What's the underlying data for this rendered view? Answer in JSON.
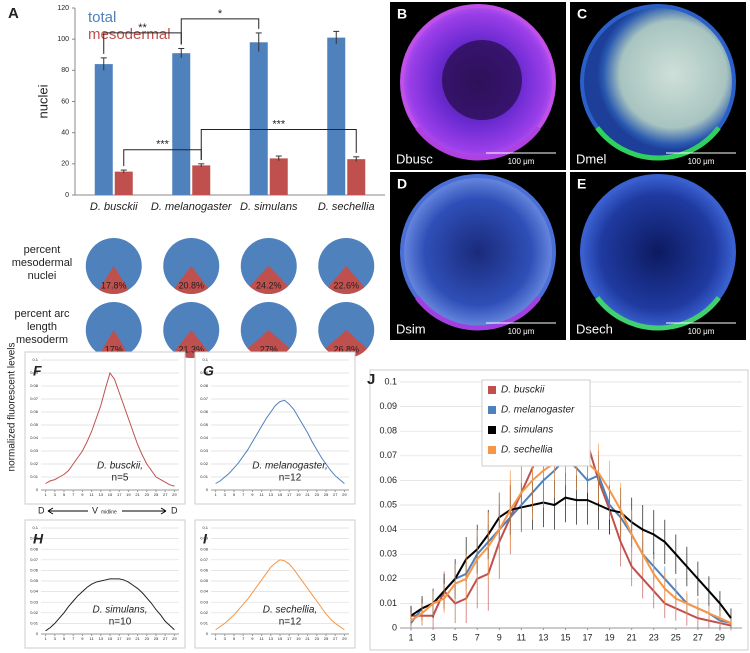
{
  "chart_data": [
    {
      "type": "bar",
      "ylabel": "nuclei",
      "categories": [
        "D. busckii",
        "D. melanogaster",
        "D. simulans",
        "D. sechellia"
      ],
      "series": [
        {
          "name": "total",
          "color": "#4f81bd",
          "values": [
            84,
            91,
            98,
            101
          ],
          "errors": [
            4,
            3,
            6,
            4
          ]
        },
        {
          "name": "mesodermal",
          "color": "#c0504d",
          "values": [
            15,
            19,
            23.5,
            23
          ],
          "errors": [
            1,
            1,
            1.5,
            1.5
          ]
        }
      ],
      "ylim": [
        0,
        120
      ],
      "yticks": [
        0,
        20,
        40,
        60,
        80,
        100,
        120
      ],
      "annotations": [
        "**",
        "*",
        "***",
        "***"
      ]
    },
    {
      "type": "pie",
      "label": "percent mesodermal nuclei",
      "color": "#c0504d",
      "rest_color": "#4f81bd",
      "values": [
        17.8,
        20.8,
        24.2,
        22.6
      ],
      "value_labels": [
        "17.8%",
        "20.8%",
        "24.2%",
        "22.6%"
      ]
    },
    {
      "type": "pie",
      "label": "percent arc length mesoderm",
      "color": "#c0504d",
      "rest_color": "#4f81bd",
      "values": [
        17,
        21.3,
        27,
        26.8
      ],
      "value_labels": [
        "17%",
        "21.3%",
        "27%",
        "26.8%"
      ]
    },
    {
      "type": "line",
      "label": "F",
      "title": "D. busckii,",
      "subtitle": "n=5",
      "ylabel": "normalized fluorescent levels",
      "color": "#c0504d",
      "x": [
        1,
        2,
        3,
        4,
        5,
        6,
        7,
        8,
        9,
        10,
        11,
        12,
        13,
        14,
        15,
        16,
        17,
        18,
        19,
        20,
        21,
        22,
        23,
        24,
        25,
        26,
        27,
        28,
        29
      ],
      "values": [
        0.005,
        0.007,
        0.008,
        0.01,
        0.012,
        0.015,
        0.02,
        0.025,
        0.03,
        0.037,
        0.045,
        0.055,
        0.065,
        0.078,
        0.09,
        0.085,
        0.075,
        0.065,
        0.055,
        0.045,
        0.035,
        0.027,
        0.02,
        0.015,
        0.01,
        0.008,
        0.006,
        0.004,
        0.003
      ],
      "xlim": [
        0,
        30
      ],
      "xticks": [
        1,
        3,
        5,
        7,
        9,
        11,
        13,
        15,
        17,
        19,
        21,
        23,
        25,
        27,
        29
      ],
      "ylim": [
        0,
        0.1
      ],
      "yticks": [
        0,
        0.01,
        0.02,
        0.03,
        0.04,
        0.05,
        0.06,
        0.07,
        0.08,
        0.09,
        0.1
      ],
      "grid": true
    },
    {
      "type": "line",
      "label": "G",
      "title": "D. melanogaster,",
      "subtitle": "n=12",
      "color": "#4f81bd",
      "x": [
        1,
        2,
        3,
        4,
        5,
        6,
        7,
        8,
        9,
        10,
        11,
        12,
        13,
        14,
        15,
        16,
        17,
        18,
        19,
        20,
        21,
        22,
        23,
        24,
        25,
        26,
        27,
        28,
        29
      ],
      "values": [
        0.005,
        0.007,
        0.01,
        0.013,
        0.017,
        0.021,
        0.026,
        0.031,
        0.037,
        0.043,
        0.049,
        0.055,
        0.06,
        0.065,
        0.068,
        0.069,
        0.066,
        0.062,
        0.056,
        0.05,
        0.044,
        0.037,
        0.031,
        0.025,
        0.02,
        0.015,
        0.011,
        0.008,
        0.005
      ],
      "xlim": [
        0,
        30
      ],
      "xticks": [
        1,
        3,
        5,
        7,
        9,
        11,
        13,
        15,
        17,
        19,
        21,
        23,
        25,
        27,
        29
      ],
      "ylim": [
        0,
        0.1
      ],
      "yticks": [
        0,
        0.01,
        0.02,
        0.03,
        0.04,
        0.05,
        0.06,
        0.07,
        0.08,
        0.09,
        0.1
      ],
      "grid": true
    },
    {
      "type": "line",
      "label": "H",
      "title": "D. simulans,",
      "subtitle": "n=10",
      "color": "#222222",
      "x": [
        1,
        2,
        3,
        4,
        5,
        6,
        7,
        8,
        9,
        10,
        11,
        12,
        13,
        14,
        15,
        16,
        17,
        18,
        19,
        20,
        21,
        22,
        23,
        24,
        25,
        26,
        27,
        28,
        29
      ],
      "values": [
        0.003,
        0.006,
        0.01,
        0.015,
        0.02,
        0.026,
        0.031,
        0.036,
        0.04,
        0.044,
        0.047,
        0.049,
        0.05,
        0.051,
        0.052,
        0.052,
        0.052,
        0.051,
        0.049,
        0.046,
        0.043,
        0.039,
        0.034,
        0.029,
        0.023,
        0.018,
        0.012,
        0.008,
        0.004
      ],
      "xlim": [
        0,
        30
      ],
      "xticks": [
        1,
        3,
        5,
        7,
        9,
        11,
        13,
        15,
        17,
        19,
        21,
        23,
        25,
        27,
        29
      ],
      "ylim": [
        0,
        0.1
      ],
      "yticks": [
        0,
        0.01,
        0.02,
        0.03,
        0.04,
        0.05,
        0.06,
        0.07,
        0.08,
        0.09,
        0.1
      ],
      "grid": true
    },
    {
      "type": "line",
      "label": "I",
      "title": "D. sechellia,",
      "subtitle": "n=12",
      "color": "#f79646",
      "x": [
        1,
        2,
        3,
        4,
        5,
        6,
        7,
        8,
        9,
        10,
        11,
        12,
        13,
        14,
        15,
        16,
        17,
        18,
        19,
        20,
        21,
        22,
        23,
        24,
        25,
        26,
        27,
        28,
        29
      ],
      "values": [
        0.004,
        0.007,
        0.01,
        0.014,
        0.018,
        0.023,
        0.028,
        0.033,
        0.039,
        0.045,
        0.051,
        0.057,
        0.063,
        0.067,
        0.07,
        0.069,
        0.066,
        0.061,
        0.055,
        0.049,
        0.043,
        0.037,
        0.031,
        0.025,
        0.019,
        0.014,
        0.01,
        0.007,
        0.004
      ],
      "xlim": [
        0,
        30
      ],
      "xticks": [
        1,
        3,
        5,
        7,
        9,
        11,
        13,
        15,
        17,
        19,
        21,
        23,
        25,
        27,
        29
      ],
      "ylim": [
        0,
        0.1
      ],
      "yticks": [
        0,
        0.01,
        0.02,
        0.03,
        0.04,
        0.05,
        0.06,
        0.07,
        0.08,
        0.09,
        0.1
      ],
      "grid": true
    },
    {
      "type": "line",
      "label": "J",
      "x": [
        1,
        2,
        3,
        4,
        5,
        6,
        7,
        8,
        9,
        10,
        11,
        12,
        13,
        14,
        15,
        16,
        17,
        18,
        19,
        20,
        21,
        22,
        23,
        24,
        25,
        26,
        27,
        28,
        29,
        30
      ],
      "series": [
        {
          "name": "D. busckii",
          "color": "#c0504d",
          "values": [
            0.005,
            0.005,
            0.005,
            0.015,
            0.01,
            0.012,
            0.02,
            0.022,
            0.035,
            0.045,
            0.055,
            0.065,
            0.075,
            0.085,
            0.091,
            0.088,
            0.075,
            0.06,
            0.048,
            0.035,
            0.025,
            0.02,
            0.015,
            0.01,
            0.008,
            0.006,
            0.004,
            0.003,
            0.002,
            0.001
          ],
          "errors": [
            0.004,
            0.004,
            0.005,
            0.008,
            0.008,
            0.01,
            0.012,
            0.015,
            0.015,
            0.015,
            0.015,
            0.015,
            0.012,
            0.01,
            0.008,
            0.01,
            0.012,
            0.012,
            0.01,
            0.01,
            0.008,
            0.008,
            0.007,
            0.006,
            0.005,
            0.005,
            0.004,
            0.003,
            0.003,
            0.002
          ]
        },
        {
          "name": "D. melanogaster",
          "color": "#4f81bd",
          "values": [
            0.002,
            0.008,
            0.01,
            0.015,
            0.02,
            0.022,
            0.03,
            0.035,
            0.04,
            0.045,
            0.05,
            0.055,
            0.06,
            0.064,
            0.069,
            0.065,
            0.06,
            0.062,
            0.05,
            0.045,
            0.038,
            0.03,
            0.025,
            0.02,
            0.015,
            0.01,
            0.008,
            0.006,
            0.003,
            0.002
          ],
          "errors": [
            0.003,
            0.004,
            0.005,
            0.005,
            0.006,
            0.006,
            0.007,
            0.007,
            0.008,
            0.008,
            0.008,
            0.008,
            0.008,
            0.008,
            0.008,
            0.008,
            0.008,
            0.008,
            0.008,
            0.007,
            0.007,
            0.006,
            0.006,
            0.005,
            0.005,
            0.004,
            0.004,
            0.003,
            0.003,
            0.002
          ]
        },
        {
          "name": "D. simulans",
          "color": "#000000",
          "values": [
            0.005,
            0.008,
            0.01,
            0.015,
            0.02,
            0.028,
            0.032,
            0.038,
            0.045,
            0.048,
            0.049,
            0.05,
            0.051,
            0.05,
            0.053,
            0.052,
            0.052,
            0.05,
            0.048,
            0.047,
            0.043,
            0.04,
            0.038,
            0.035,
            0.03,
            0.025,
            0.02,
            0.015,
            0.01,
            0.004
          ],
          "errors": [
            0.004,
            0.005,
            0.006,
            0.007,
            0.008,
            0.009,
            0.01,
            0.01,
            0.01,
            0.01,
            0.01,
            0.01,
            0.01,
            0.01,
            0.01,
            0.01,
            0.01,
            0.01,
            0.01,
            0.01,
            0.01,
            0.01,
            0.01,
            0.009,
            0.008,
            0.008,
            0.007,
            0.006,
            0.005,
            0.004
          ]
        },
        {
          "name": "D. sechellia",
          "color": "#f79646",
          "values": [
            0.003,
            0.006,
            0.01,
            0.012,
            0.018,
            0.02,
            0.028,
            0.033,
            0.04,
            0.048,
            0.055,
            0.06,
            0.064,
            0.067,
            0.07,
            0.068,
            0.067,
            0.063,
            0.056,
            0.048,
            0.038,
            0.03,
            0.022,
            0.016,
            0.012,
            0.01,
            0.008,
            0.006,
            0.004,
            0.002
          ],
          "errors": [
            0.003,
            0.004,
            0.005,
            0.006,
            0.008,
            0.01,
            0.012,
            0.014,
            0.015,
            0.016,
            0.016,
            0.016,
            0.015,
            0.014,
            0.012,
            0.012,
            0.012,
            0.012,
            0.012,
            0.011,
            0.01,
            0.009,
            0.008,
            0.007,
            0.006,
            0.005,
            0.004,
            0.003,
            0.003,
            0.002
          ]
        }
      ],
      "xlim": [
        0,
        31
      ],
      "xticks": [
        1,
        3,
        5,
        7,
        9,
        11,
        13,
        15,
        17,
        19,
        21,
        23,
        25,
        27,
        29
      ],
      "ylim": [
        0,
        0.1
      ],
      "yticks": [
        0,
        0.01,
        0.02,
        0.03,
        0.04,
        0.05,
        0.06,
        0.07,
        0.08,
        0.09,
        0.1
      ],
      "grid": true
    }
  ],
  "panel_a": "A",
  "orientation": {
    "left": "D",
    "center": "V",
    "note": "midline",
    "right": "D"
  },
  "micrographs": [
    {
      "letter": "B",
      "name": "Dbusc",
      "scale": "100 μm"
    },
    {
      "letter": "C",
      "name": "Dmel",
      "scale": "100 μm"
    },
    {
      "letter": "D",
      "name": "Dsim",
      "scale": "100 μm"
    },
    {
      "letter": "E",
      "name": "Dsech",
      "scale": "100 μm"
    }
  ]
}
